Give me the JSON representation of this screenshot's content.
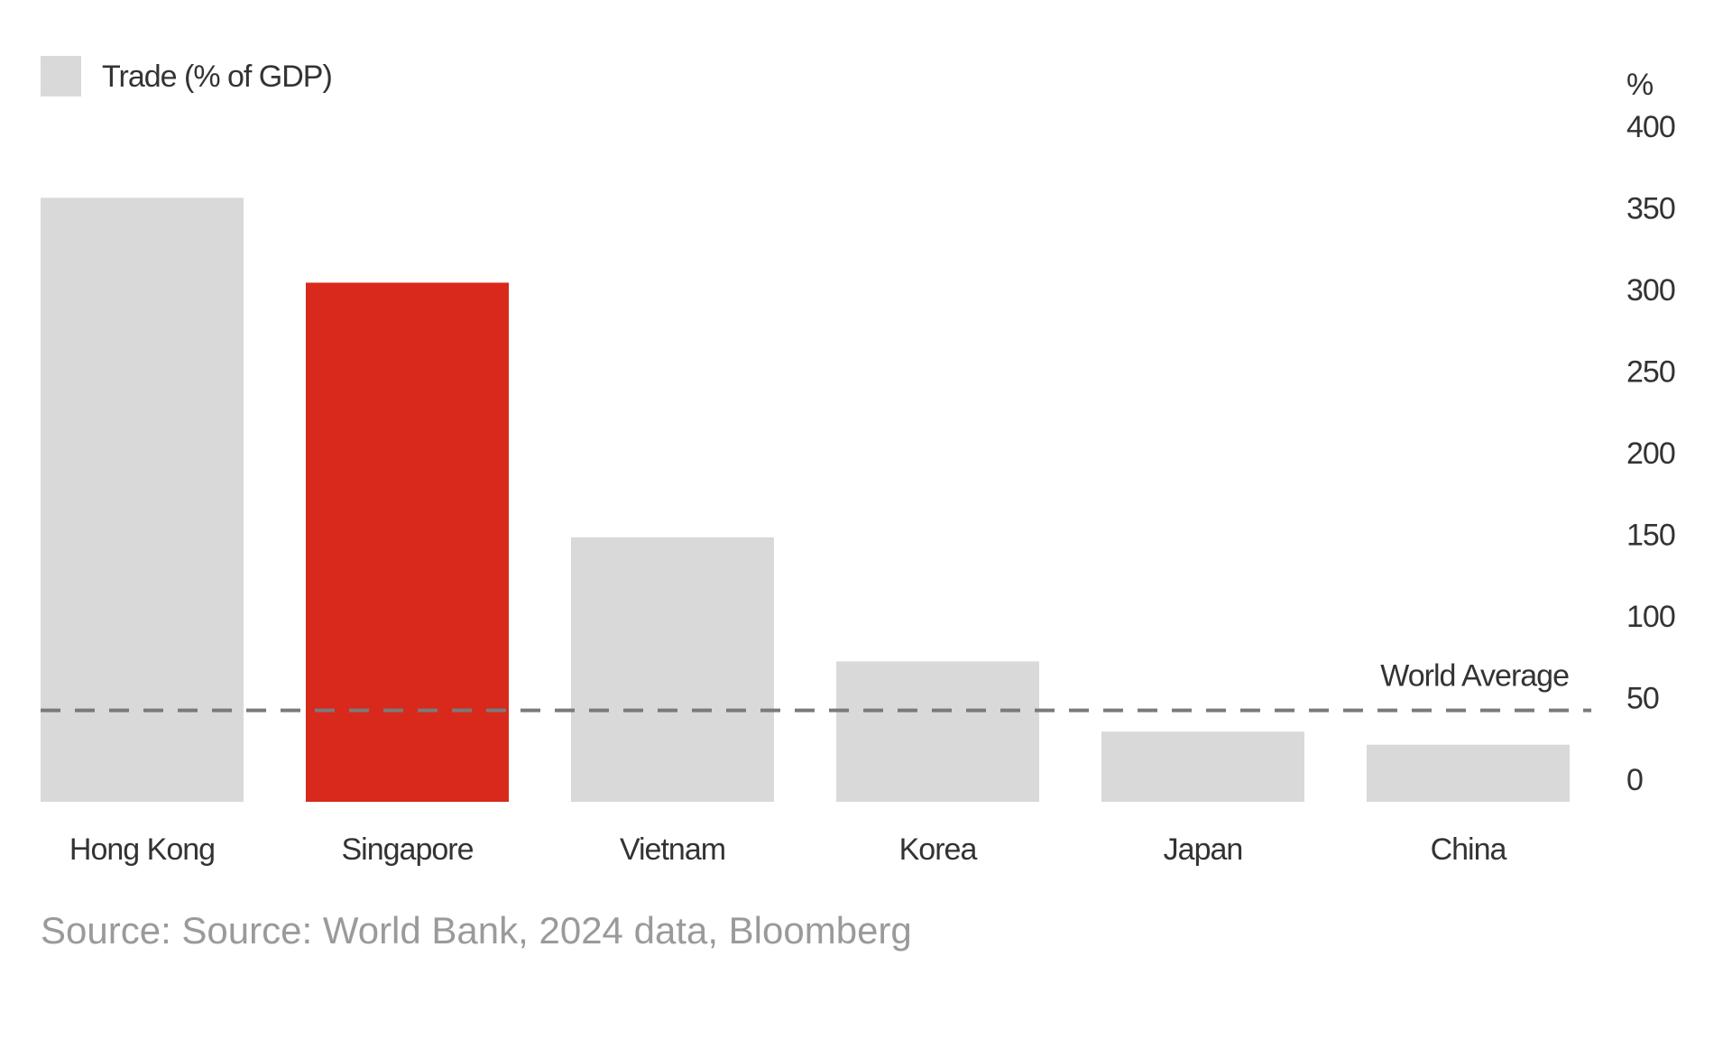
{
  "chart_data": {
    "type": "bar",
    "categories": [
      "Hong Kong",
      "Singapore",
      "Vietnam",
      "Korea",
      "Japan",
      "China"
    ],
    "series": [
      {
        "name": "Trade (% of GDP)",
        "color": "#d9d9d9",
        "values": [
          370,
          318,
          162,
          86,
          43,
          35
        ],
        "colors": [
          "#d9d9d9",
          "#d9291c",
          "#d9d9d9",
          "#d9d9d9",
          "#d9d9d9",
          "#d9d9d9"
        ]
      }
    ],
    "y_axis_label": "%",
    "ylim": [
      0,
      400
    ],
    "yticks": [
      0,
      50,
      100,
      150,
      200,
      250,
      300,
      350,
      400
    ],
    "y_axis_side": "right",
    "grid": false,
    "reference_line": {
      "value": 56,
      "label": "World Average",
      "color": "#7a7a7a"
    },
    "source": "Source: Source: World Bank, 2024 data, Bloomberg"
  }
}
